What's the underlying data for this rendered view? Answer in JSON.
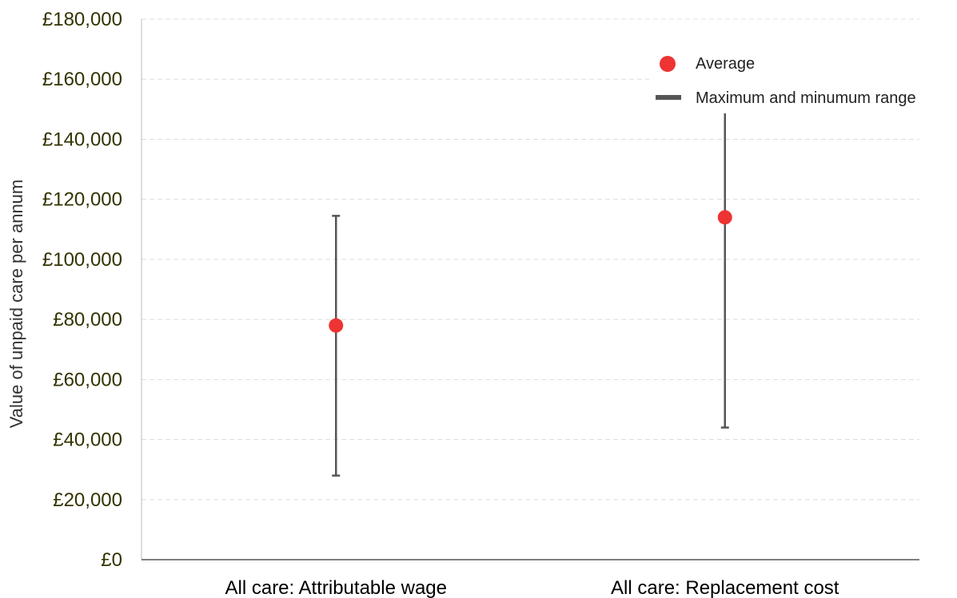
{
  "chart_data": {
    "type": "scatter",
    "title": "",
    "xlabel": "",
    "ylabel": "Value of unpaid care per annum",
    "categories": [
      "All care: Attributable wage",
      "All care: Replacement cost"
    ],
    "series": [
      {
        "name": "Average",
        "values": [
          78000,
          114000
        ]
      },
      {
        "name": "Maximum and minumum range",
        "min": [
          28000,
          44000
        ],
        "max": [
          114500,
          149000
        ]
      }
    ],
    "ylim": [
      0,
      180000
    ],
    "y_ticks": [
      0,
      20000,
      40000,
      60000,
      80000,
      100000,
      120000,
      140000,
      160000,
      180000
    ],
    "y_tick_labels": [
      "£0",
      "£20,000",
      "£40,000",
      "£60,000",
      "£80,000",
      "£100,000",
      "£120,000",
      "£140,000",
      "£160,000",
      "£180,000"
    ],
    "grid": true,
    "legend_position": "top-right",
    "colors": {
      "average": "#ee3333",
      "range": "#555555",
      "grid": "#dddddd",
      "y_tick_text": "#333300"
    }
  }
}
